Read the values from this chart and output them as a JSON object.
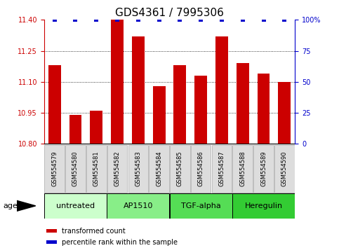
{
  "title": "GDS4361 / 7995306",
  "samples": [
    "GSM554579",
    "GSM554580",
    "GSM554581",
    "GSM554582",
    "GSM554583",
    "GSM554584",
    "GSM554585",
    "GSM554586",
    "GSM554587",
    "GSM554588",
    "GSM554589",
    "GSM554590"
  ],
  "bar_values": [
    11.18,
    10.94,
    10.96,
    11.4,
    11.32,
    11.08,
    11.18,
    11.13,
    11.32,
    11.19,
    11.14,
    11.1
  ],
  "percentile_values": [
    100,
    100,
    100,
    100,
    100,
    100,
    100,
    100,
    100,
    100,
    100,
    100
  ],
  "bar_color": "#cc0000",
  "percentile_color": "#0000cc",
  "ylim_left": [
    10.8,
    11.4
  ],
  "ylim_right": [
    0,
    100
  ],
  "yticks_left": [
    10.8,
    10.95,
    11.1,
    11.25,
    11.4
  ],
  "yticks_right": [
    0,
    25,
    50,
    75,
    100
  ],
  "grid_values": [
    10.95,
    11.1,
    11.25
  ],
  "agents": [
    {
      "label": "untreated",
      "start": 0,
      "end": 3,
      "color": "#ccffcc"
    },
    {
      "label": "AP1510",
      "start": 3,
      "end": 6,
      "color": "#88ee88"
    },
    {
      "label": "TGF-alpha",
      "start": 6,
      "end": 9,
      "color": "#55dd55"
    },
    {
      "label": "Heregulin",
      "start": 9,
      "end": 12,
      "color": "#33cc33"
    }
  ],
  "agent_label": "agent",
  "legend_bar_label": "transformed count",
  "legend_pct_label": "percentile rank within the sample",
  "sample_box_color": "#dddddd",
  "sample_box_edge": "#aaaaaa",
  "title_fontsize": 11,
  "tick_fontsize": 7,
  "label_fontsize": 8,
  "sample_fontsize": 6
}
